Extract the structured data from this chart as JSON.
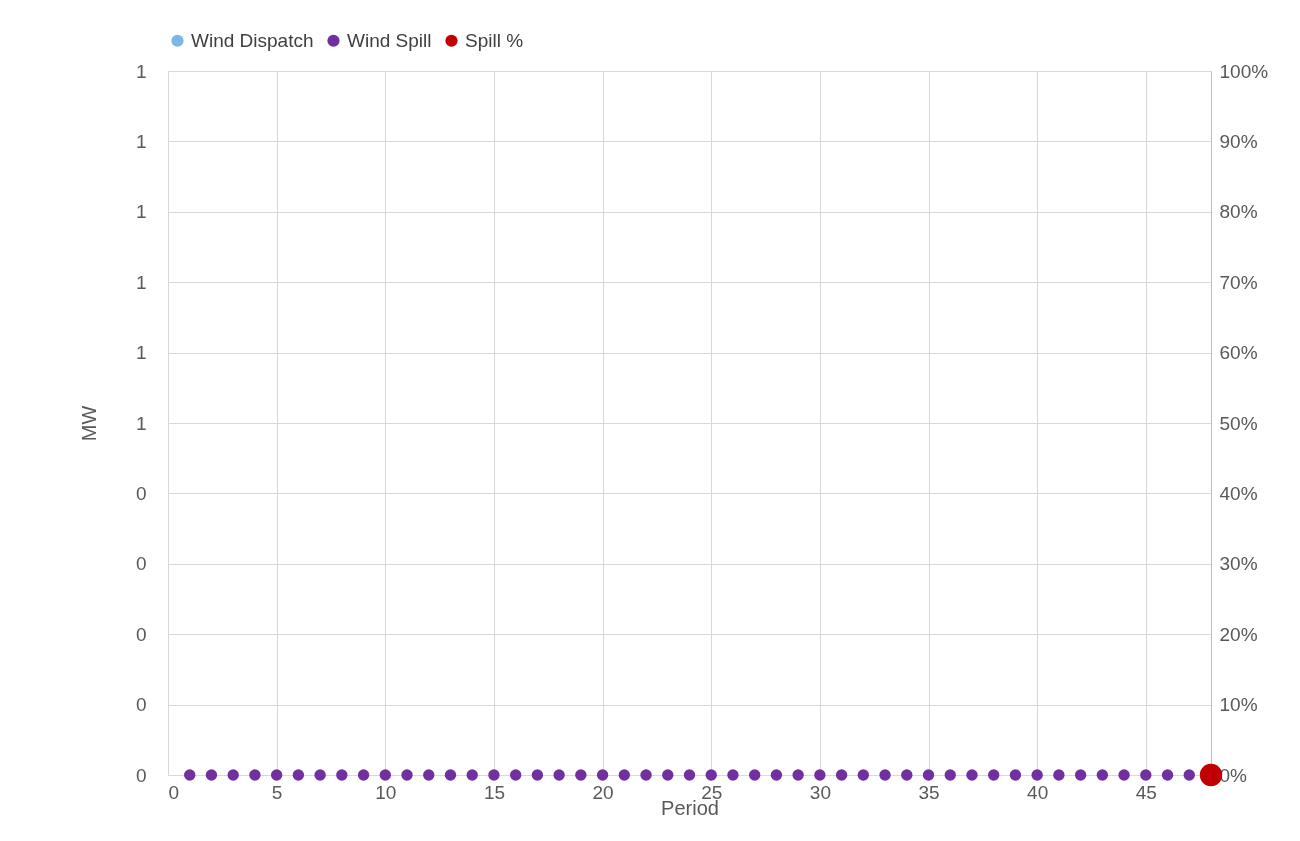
{
  "chart_data": {
    "type": "scatter",
    "xlabel": "Period",
    "ylabel": "MW",
    "x": [
      1,
      2,
      3,
      4,
      5,
      6,
      7,
      8,
      9,
      10,
      11,
      12,
      13,
      14,
      15,
      16,
      17,
      18,
      19,
      20,
      21,
      22,
      23,
      24,
      25,
      26,
      27,
      28,
      29,
      30,
      31,
      32,
      33,
      34,
      35,
      36,
      37,
      38,
      39,
      40,
      41,
      42,
      43,
      44,
      45,
      46,
      47
    ],
    "series": [
      {
        "name": "Wind Dispatch",
        "color": "#7ab8e6",
        "values": [
          null,
          null,
          null,
          null,
          null,
          null,
          null,
          null,
          null,
          null,
          null,
          null,
          null,
          null,
          null,
          null,
          null,
          null,
          null,
          null,
          null,
          null,
          null,
          null,
          null,
          null,
          null,
          null,
          null,
          null,
          null,
          null,
          null,
          null,
          null,
          null,
          null,
          null,
          null,
          null,
          null,
          null,
          null,
          null,
          null,
          null,
          null
        ]
      },
      {
        "name": "Wind Spill",
        "color": "#7030a0",
        "values": [
          0,
          0,
          0,
          0,
          0,
          0,
          0,
          0,
          0,
          0,
          0,
          0,
          0,
          0,
          0,
          0,
          0,
          0,
          0,
          0,
          0,
          0,
          0,
          0,
          0,
          0,
          0,
          0,
          0,
          0,
          0,
          0,
          0,
          0,
          0,
          0,
          0,
          0,
          0,
          0,
          0,
          0,
          0,
          0,
          0,
          0,
          0
        ]
      },
      {
        "name": "Spill %",
        "color": "#c00000",
        "axis": "y2",
        "x": [
          48
        ],
        "values": [
          0
        ]
      }
    ],
    "xlim": [
      0,
      48
    ],
    "xticks": [
      0,
      5,
      10,
      15,
      20,
      25,
      30,
      35,
      40,
      45
    ],
    "ylim": [
      0,
      1
    ],
    "yticks": [
      0,
      {
        "value": 0.1,
        "label": "0"
      },
      {
        "value": 0.2,
        "label": "0"
      },
      {
        "value": 0.3,
        "label": "0"
      },
      {
        "value": 0.4,
        "label": "0"
      },
      {
        "value": 0.5,
        "label": "1"
      },
      {
        "value": 0.6,
        "label": "1"
      },
      {
        "value": 0.7,
        "label": "1"
      },
      {
        "value": 0.8,
        "label": "1"
      },
      {
        "value": 0.9,
        "label": "1"
      },
      1
    ],
    "y2lim": [
      0,
      1
    ],
    "y2ticks": [
      {
        "value": 0,
        "label": "0%"
      },
      {
        "value": 0.1,
        "label": "10%"
      },
      {
        "value": 0.2,
        "label": "20%"
      },
      {
        "value": 0.3,
        "label": "30%"
      },
      {
        "value": 0.4,
        "label": "40%"
      },
      {
        "value": 0.5,
        "label": "50%"
      },
      {
        "value": 0.6,
        "label": "60%"
      },
      {
        "value": 0.7,
        "label": "70%"
      },
      {
        "value": 0.8,
        "label": "80%"
      },
      {
        "value": 0.9,
        "label": "90%"
      },
      {
        "value": 1,
        "label": "100%"
      }
    ],
    "grid": true,
    "legend": "top",
    "marker": "circle"
  }
}
